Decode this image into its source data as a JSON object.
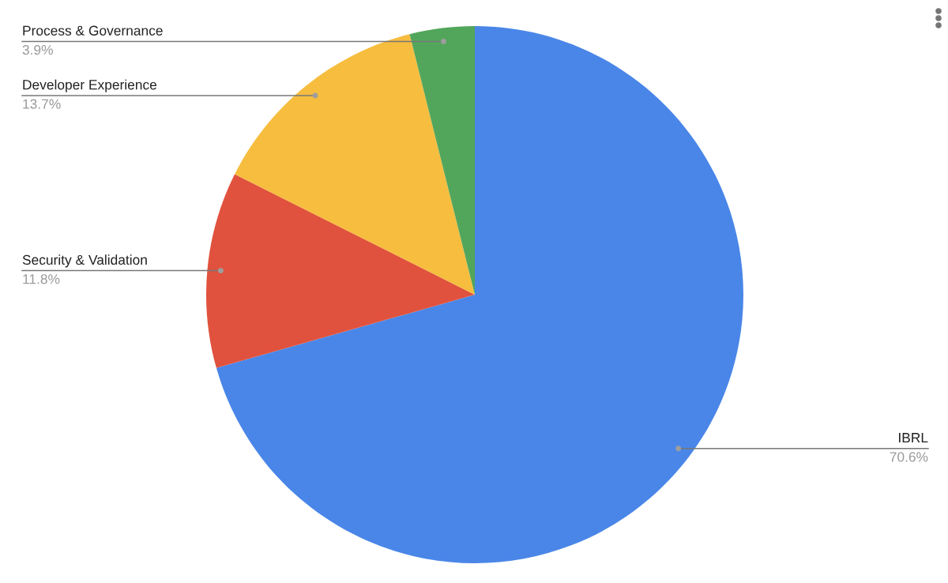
{
  "chart_data": {
    "type": "pie",
    "categories": [
      "IBRL",
      "Security & Validation",
      "Developer Experience",
      "Process & Governance"
    ],
    "values": [
      70.6,
      11.8,
      13.7,
      3.9
    ],
    "colors": [
      "#4a86e8",
      "#e0523d",
      "#f6bd3f",
      "#52a65b"
    ],
    "value_labels": [
      "70.6%",
      "11.8%",
      "13.7%",
      "3.9%"
    ],
    "legend": false
  }
}
